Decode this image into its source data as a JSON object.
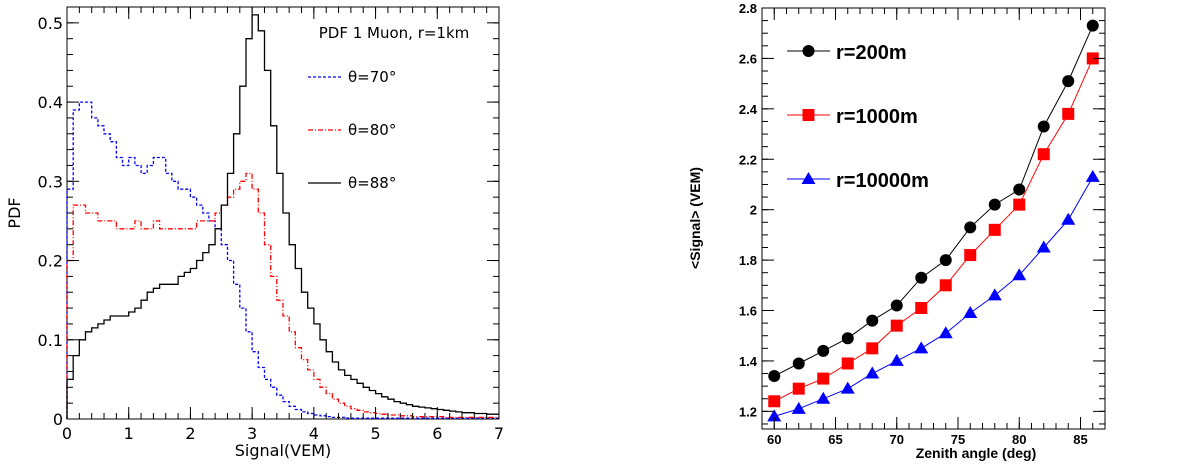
{
  "chart_data": [
    {
      "type": "line",
      "subtype": "step-histogram",
      "title": "PDF 1 Muon, r=1km",
      "xlabel": "Signal(VEM)",
      "ylabel": "PDF",
      "xlim": [
        0,
        7
      ],
      "ylim": [
        0,
        0.52
      ],
      "x_ticks": [
        "0",
        "1",
        "2",
        "3",
        "4",
        "5",
        "6",
        "7"
      ],
      "y_ticks": [
        "0",
        "0.1",
        "0.2",
        "0.3",
        "0.4",
        "0.5"
      ],
      "grid": false,
      "legend_position": "top-right",
      "x": [
        0.05,
        0.15,
        0.25,
        0.35,
        0.45,
        0.55,
        0.65,
        0.75,
        0.85,
        0.95,
        1.05,
        1.15,
        1.25,
        1.35,
        1.45,
        1.55,
        1.65,
        1.75,
        1.85,
        1.95,
        2.05,
        2.15,
        2.25,
        2.35,
        2.45,
        2.55,
        2.65,
        2.75,
        2.85,
        2.95,
        3.05,
        3.15,
        3.25,
        3.35,
        3.45,
        3.55,
        3.65,
        3.75,
        3.85,
        3.95,
        4.05,
        4.15,
        4.25,
        4.35,
        4.45,
        4.55,
        4.65,
        4.75,
        4.85,
        4.95,
        5.05,
        5.15,
        5.25,
        5.35,
        5.45,
        5.55,
        5.65,
        5.75,
        5.85,
        5.95,
        6.05,
        6.15,
        6.25,
        6.35,
        6.45,
        6.55,
        6.65,
        6.75,
        6.85,
        6.95
      ],
      "series": [
        {
          "name": "θ=70°",
          "color": "#0000ff",
          "style": "dashed",
          "values": [
            0.29,
            0.39,
            0.4,
            0.4,
            0.38,
            0.37,
            0.36,
            0.35,
            0.33,
            0.32,
            0.33,
            0.32,
            0.31,
            0.32,
            0.33,
            0.33,
            0.31,
            0.3,
            0.29,
            0.29,
            0.28,
            0.27,
            0.26,
            0.25,
            0.24,
            0.22,
            0.2,
            0.17,
            0.14,
            0.11,
            0.085,
            0.065,
            0.05,
            0.04,
            0.03,
            0.022,
            0.016,
            0.012,
            0.009,
            0.007,
            0.005,
            0.004,
            0.003,
            0.002,
            0.002,
            0.001,
            0.001,
            0.001,
            0.001,
            0.001,
            0.001,
            0.001,
            0.001,
            0.001,
            0.001,
            0.001,
            0.001,
            0.001,
            0.001,
            0.001,
            0.001,
            0.001,
            0.001,
            0.001,
            0.001,
            0.001,
            0.001,
            0.001,
            0.001,
            0.001
          ]
        },
        {
          "name": "θ=80°",
          "color": "#ff0000",
          "style": "dash-dot",
          "values": [
            0.2,
            0.27,
            0.27,
            0.26,
            0.26,
            0.25,
            0.25,
            0.25,
            0.24,
            0.24,
            0.24,
            0.25,
            0.24,
            0.24,
            0.25,
            0.24,
            0.24,
            0.24,
            0.24,
            0.24,
            0.24,
            0.25,
            0.25,
            0.25,
            0.26,
            0.27,
            0.28,
            0.29,
            0.3,
            0.31,
            0.29,
            0.26,
            0.22,
            0.18,
            0.15,
            0.13,
            0.11,
            0.09,
            0.075,
            0.062,
            0.05,
            0.04,
            0.032,
            0.025,
            0.02,
            0.016,
            0.013,
            0.011,
            0.009,
            0.008,
            0.007,
            0.006,
            0.005,
            0.005,
            0.004,
            0.004,
            0.003,
            0.003,
            0.003,
            0.003,
            0.003,
            0.002,
            0.002,
            0.002,
            0.002,
            0.002,
            0.002,
            0.002,
            0.002,
            0.002
          ]
        },
        {
          "name": "θ=88°",
          "color": "#000000",
          "style": "solid",
          "values": [
            0.05,
            0.08,
            0.1,
            0.11,
            0.115,
            0.12,
            0.125,
            0.13,
            0.13,
            0.13,
            0.135,
            0.14,
            0.15,
            0.16,
            0.165,
            0.17,
            0.17,
            0.17,
            0.18,
            0.185,
            0.19,
            0.2,
            0.21,
            0.22,
            0.24,
            0.27,
            0.31,
            0.36,
            0.42,
            0.48,
            0.51,
            0.49,
            0.44,
            0.37,
            0.31,
            0.26,
            0.22,
            0.19,
            0.16,
            0.14,
            0.12,
            0.1,
            0.085,
            0.072,
            0.062,
            0.055,
            0.05,
            0.045,
            0.04,
            0.036,
            0.032,
            0.028,
            0.025,
            0.022,
            0.02,
            0.018,
            0.016,
            0.015,
            0.014,
            0.013,
            0.012,
            0.011,
            0.01,
            0.009,
            0.008,
            0.008,
            0.007,
            0.007,
            0.006,
            0.006
          ]
        }
      ]
    },
    {
      "type": "line",
      "xlabel": "Zenith angle (deg)",
      "ylabel": "<Signal> (VEM)",
      "xlim": [
        59,
        87
      ],
      "ylim": [
        1.13,
        2.8
      ],
      "x_ticks": [
        "60",
        "65",
        "70",
        "75",
        "80",
        "85"
      ],
      "y_ticks": [
        "1.2",
        "1.4",
        "1.6",
        "1.8",
        "2",
        "2.2",
        "2.4",
        "2.6",
        "2.8"
      ],
      "grid": false,
      "legend_position": "top-left",
      "x": [
        60,
        62,
        64,
        66,
        68,
        70,
        72,
        74,
        76,
        78,
        80,
        82,
        84,
        86
      ],
      "series": [
        {
          "name": "r=200m",
          "color": "#000000",
          "marker": "circle",
          "values": [
            1.34,
            1.39,
            1.44,
            1.49,
            1.56,
            1.62,
            1.73,
            1.8,
            1.93,
            2.02,
            2.08,
            2.33,
            2.51,
            2.73
          ]
        },
        {
          "name": "r=1000m",
          "color": "#ff0000",
          "marker": "square",
          "values": [
            1.24,
            1.29,
            1.33,
            1.39,
            1.45,
            1.54,
            1.61,
            1.7,
            1.82,
            1.92,
            2.02,
            2.22,
            2.38,
            2.6
          ]
        },
        {
          "name": "r=10000m",
          "color": "#0000ff",
          "marker": "triangle",
          "values": [
            1.18,
            1.21,
            1.25,
            1.29,
            1.35,
            1.4,
            1.45,
            1.51,
            1.59,
            1.66,
            1.74,
            1.85,
            1.96,
            2.13
          ]
        }
      ]
    }
  ]
}
